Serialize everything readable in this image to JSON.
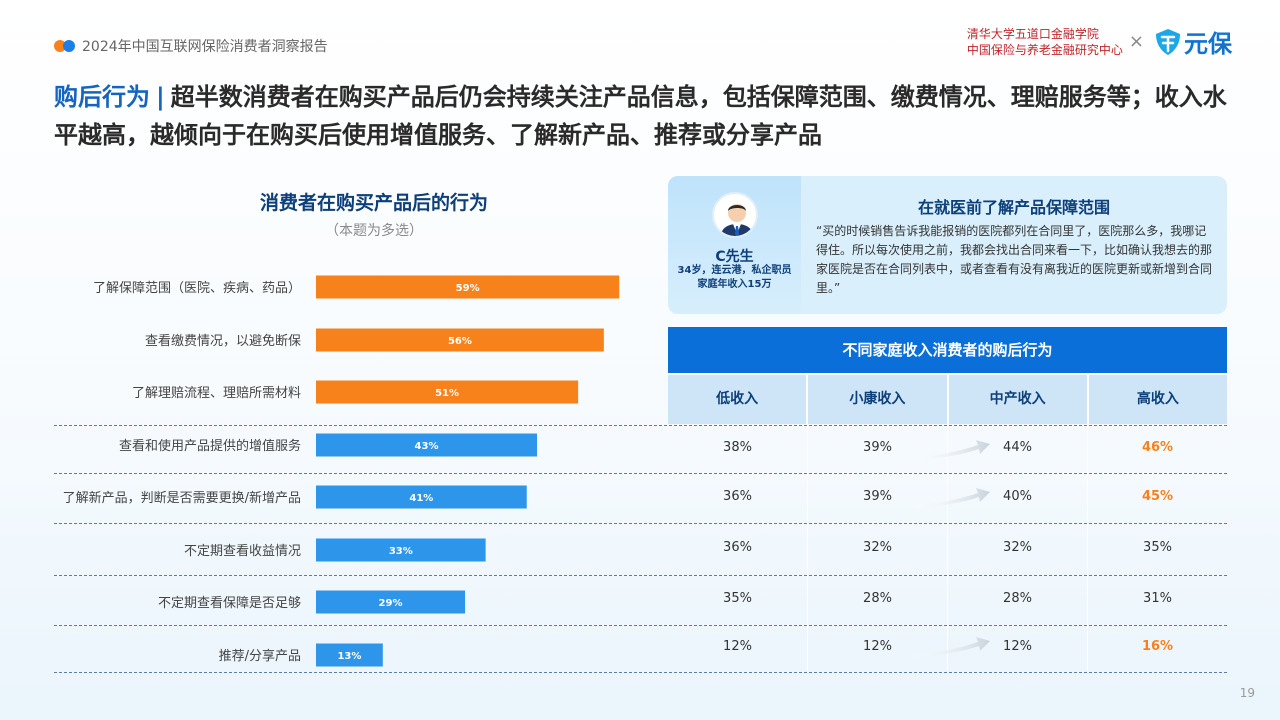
{
  "header": {
    "report_title": "2024年中国互联网保险消费者洞察报告",
    "org_line1": "清华大学五道口金融学院",
    "org_line2": "中国保险与养老金融研究中心",
    "times": "×",
    "brand_name": "元保"
  },
  "headline": {
    "key": "购后行为",
    "sep": "|",
    "text": "超半数消费者在购买产品后仍会持续关注产品信息，包括保障范围、缴费情况、理赔服务等；收入水平越高，越倾向于在购买后使用增值服务、了解新产品、推荐或分享产品"
  },
  "chart_data": {
    "type": "bar",
    "orientation": "horizontal",
    "title": "消费者在购买产品后的行为",
    "subtitle": "（本题为多选）",
    "categories": [
      "了解保障范围（医院、疾病、药品）",
      "查看缴费情况，以避免断保",
      "了解理赔流程、理赔所需材料",
      "查看和使用产品提供的增值服务",
      "了解新产品，判断是否需要更换/新增产品",
      "不定期查看收益情况",
      "不定期查看保障是否足够",
      "推荐/分享产品"
    ],
    "values": [
      59,
      56,
      51,
      43,
      41,
      33,
      29,
      13
    ],
    "value_labels": [
      "59%",
      "56%",
      "51%",
      "43%",
      "41%",
      "33%",
      "29%",
      "13%"
    ],
    "unit": "%",
    "xlim": [
      0,
      100
    ],
    "colors": [
      "#f7821b",
      "#f7821b",
      "#f7821b",
      "#2d96ea",
      "#2d96ea",
      "#2d96ea",
      "#2d96ea",
      "#2d96ea"
    ],
    "grid": false,
    "legend": "none"
  },
  "quote": {
    "person_name": "C先生",
    "person_line1": "34岁，连云港，私企职员",
    "person_line2": "家庭年收入15万",
    "heading": "在就医前了解产品保障范围",
    "text": "“买的时候销售告诉我能报销的医院都列在合同里了，医院那么多，我哪记得住。所以每次使用之前，我都会找出合同来看一下，比如确认我想去的那家医院是否在合同列表中，或者查看有没有离我近的医院更新或新增到合同里。”"
  },
  "income_table": {
    "title": "不同家庭收入消费者的购后行为",
    "columns": [
      "低收入",
      "小康收入",
      "中产收入",
      "高收入"
    ],
    "rows": [
      {
        "cells": [
          "38%",
          "39%",
          "44%",
          "46%"
        ],
        "highlight_last": true,
        "arrow": true
      },
      {
        "cells": [
          "36%",
          "39%",
          "40%",
          "45%"
        ],
        "highlight_last": true,
        "arrow": true
      },
      {
        "cells": [
          "36%",
          "32%",
          "32%",
          "35%"
        ],
        "highlight_last": false,
        "arrow": false
      },
      {
        "cells": [
          "35%",
          "28%",
          "28%",
          "31%"
        ],
        "highlight_last": false,
        "arrow": false
      },
      {
        "cells": [
          "12%",
          "12%",
          "12%",
          "16%"
        ],
        "highlight_last": true,
        "arrow": true
      }
    ],
    "highlight_color": "#f7821b"
  },
  "page_number": "19"
}
